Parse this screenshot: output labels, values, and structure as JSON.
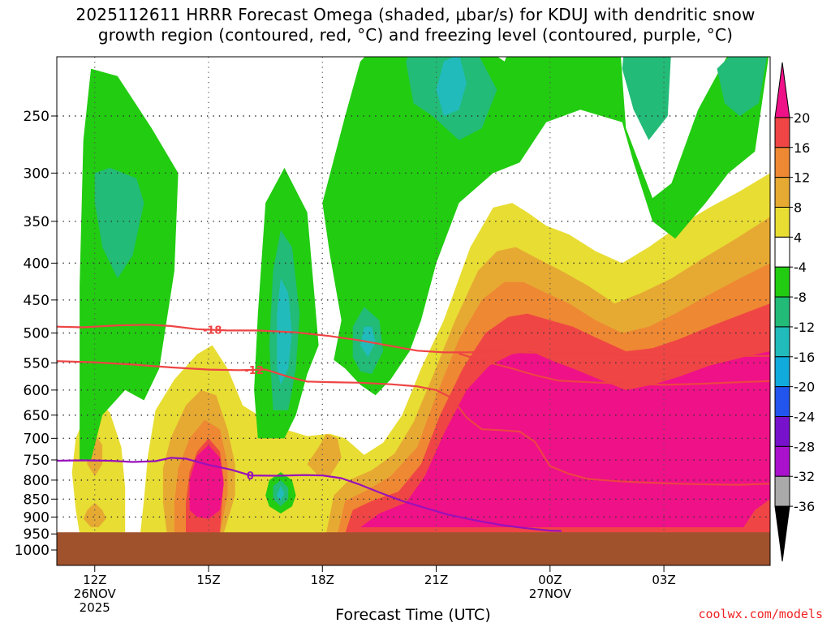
{
  "title_line1": "2025112611 HRRR Forecast Omega (shaded, μbar/s) for KDUJ with dendritic snow",
  "title_line2": "growth region (contoured, red, °C) and freezing level (contoured, purple, °C)",
  "credit": "coolwx.com/models",
  "colors": {
    "magenta": "#ee1188",
    "red": "#f04545",
    "orange": "#ee8833",
    "gold": "#e6aa33",
    "yellow": "#e8dd33",
    "white": "#ffffff",
    "green": "#22cc11",
    "seagreen": "#22bb77",
    "teal": "#22bbbb",
    "cyan": "#11aadd",
    "blue": "#2255ee",
    "purple": "#7711cc",
    "violet": "#aa11cc",
    "gray": "#aaaaaa",
    "black": "#000000",
    "ground": "#a0522d",
    "freezing": "#9911bb",
    "dgz": "#ee4444"
  },
  "chart_data": {
    "type": "heatmap",
    "title": "2025112611 HRRR Forecast Omega (shaded, μbar/s) for KDUJ with dendritic snow growth region (contoured, red, °C) and freezing level (contoured, purple, °C)",
    "xlabel": "Forecast Time (UTC)",
    "ylabel": "",
    "xlim": [
      11,
      29.8
    ],
    "ylim_pressure_hPa": [
      1000,
      200
    ],
    "x_ticks": [
      {
        "value": 12,
        "label": "12Z",
        "sub1": "26NOV",
        "sub2": "2025"
      },
      {
        "value": 15,
        "label": "15Z",
        "sub1": "",
        "sub2": ""
      },
      {
        "value": 18,
        "label": "18Z",
        "sub1": "",
        "sub2": ""
      },
      {
        "value": 21,
        "label": "21Z",
        "sub1": "",
        "sub2": ""
      },
      {
        "value": 24,
        "label": "00Z",
        "sub1": "27NOV",
        "sub2": ""
      },
      {
        "value": 27,
        "label": "03Z",
        "sub1": "",
        "sub2": ""
      }
    ],
    "y_ticks": [
      250,
      300,
      350,
      400,
      450,
      500,
      550,
      600,
      650,
      700,
      750,
      800,
      850,
      900,
      950,
      1000
    ],
    "grid": true,
    "ground_pressure_hPa": 945,
    "colorbar": {
      "ticks": [
        20,
        16,
        12,
        8,
        4,
        -4,
        -8,
        -12,
        -16,
        -20,
        -24,
        -28,
        -32,
        -36
      ],
      "bins": [
        {
          "range": "> 20",
          "color": "#ee1188"
        },
        {
          "range": "16 to 20",
          "color": "#f04545"
        },
        {
          "range": "12 to 16",
          "color": "#ee8833"
        },
        {
          "range": "8 to 12",
          "color": "#e6aa33"
        },
        {
          "range": "4 to 8",
          "color": "#e8dd33"
        },
        {
          "range": "-4 to 4",
          "color": "#ffffff"
        },
        {
          "range": "-8 to -4",
          "color": "#22cc11"
        },
        {
          "range": "-12 to -8",
          "color": "#22bb77"
        },
        {
          "range": "-16 to -12",
          "color": "#22bbbb"
        },
        {
          "range": "-20 to -16",
          "color": "#11aadd"
        },
        {
          "range": "-24 to -20",
          "color": "#2255ee"
        },
        {
          "range": "-28 to -24",
          "color": "#7711cc"
        },
        {
          "range": "-32 to -28",
          "color": "#aa11cc"
        },
        {
          "range": "-36 to -32",
          "color": "#aaaaaa"
        },
        {
          "range": "< -36",
          "color": "#000000"
        }
      ]
    },
    "contours": [
      {
        "label": "-18",
        "color": "#ee4444",
        "points": [
          [
            11,
            490
          ],
          [
            11.7,
            491
          ],
          [
            12.6,
            488
          ],
          [
            13.4,
            487
          ],
          [
            14,
            489
          ],
          [
            14.7,
            494
          ],
          [
            15.5,
            496
          ],
          [
            16.3,
            496
          ],
          [
            17.3,
            499
          ],
          [
            18.2,
            505
          ],
          [
            19,
            512
          ],
          [
            19.8,
            521
          ],
          [
            20.5,
            529
          ],
          [
            21.2,
            532
          ],
          [
            21.8,
            532
          ],
          [
            22.4,
            531
          ],
          [
            23.2,
            532
          ],
          [
            24,
            533
          ],
          [
            25,
            534
          ],
          [
            26,
            536
          ],
          [
            27,
            537
          ],
          [
            28,
            538
          ],
          [
            29.8,
            538
          ]
        ]
      },
      {
        "label": "-12",
        "color": "#ee4444",
        "points": [
          [
            11,
            547
          ],
          [
            12,
            549
          ],
          [
            13,
            553
          ],
          [
            14,
            558
          ],
          [
            15,
            562
          ],
          [
            15.8,
            563
          ],
          [
            16.5,
            562
          ],
          [
            17.1,
            575
          ],
          [
            17.6,
            584
          ],
          [
            18.2,
            585
          ],
          [
            19,
            586
          ],
          [
            19.8,
            589
          ],
          [
            20.5,
            593
          ],
          [
            21,
            600
          ],
          [
            21.4,
            615
          ],
          [
            21.8,
            655
          ],
          [
            22.2,
            680
          ],
          [
            22.7,
            682
          ],
          [
            23.2,
            685
          ],
          [
            23.6,
            708
          ],
          [
            24,
            765
          ],
          [
            24.5,
            784
          ],
          [
            25,
            797
          ],
          [
            25.8,
            803
          ],
          [
            26.5,
            806
          ],
          [
            27.3,
            809
          ],
          [
            28.2,
            811
          ],
          [
            29,
            812
          ],
          [
            29.8,
            809
          ]
        ]
      },
      {
        "label": "",
        "color": "#ee4444",
        "points": [
          [
            21.6,
            534
          ],
          [
            22.3,
            548
          ],
          [
            23,
            560
          ],
          [
            23.6,
            572
          ],
          [
            24.2,
            582
          ],
          [
            25,
            585
          ],
          [
            26,
            588
          ],
          [
            27,
            590
          ],
          [
            28,
            588
          ],
          [
            29,
            585
          ],
          [
            29.8,
            583
          ]
        ]
      },
      {
        "label": "0",
        "color": "#9911bb",
        "points": [
          [
            11,
            752
          ],
          [
            11.6,
            751
          ],
          [
            12.4,
            752
          ],
          [
            13,
            755
          ],
          [
            13.6,
            753
          ],
          [
            14,
            745
          ],
          [
            14.4,
            747
          ],
          [
            15,
            762
          ],
          [
            15.6,
            774
          ],
          [
            16.1,
            788
          ],
          [
            16.8,
            789
          ],
          [
            17.5,
            787
          ],
          [
            18,
            788
          ],
          [
            18.5,
            795
          ],
          [
            19,
            812
          ],
          [
            19.5,
            832
          ],
          [
            20.1,
            855
          ],
          [
            20.7,
            874
          ],
          [
            21.3,
            893
          ],
          [
            22,
            909
          ],
          [
            22.7,
            923
          ],
          [
            23.3,
            932
          ],
          [
            24,
            940
          ],
          [
            24.3,
            941
          ]
        ]
      }
    ]
  }
}
